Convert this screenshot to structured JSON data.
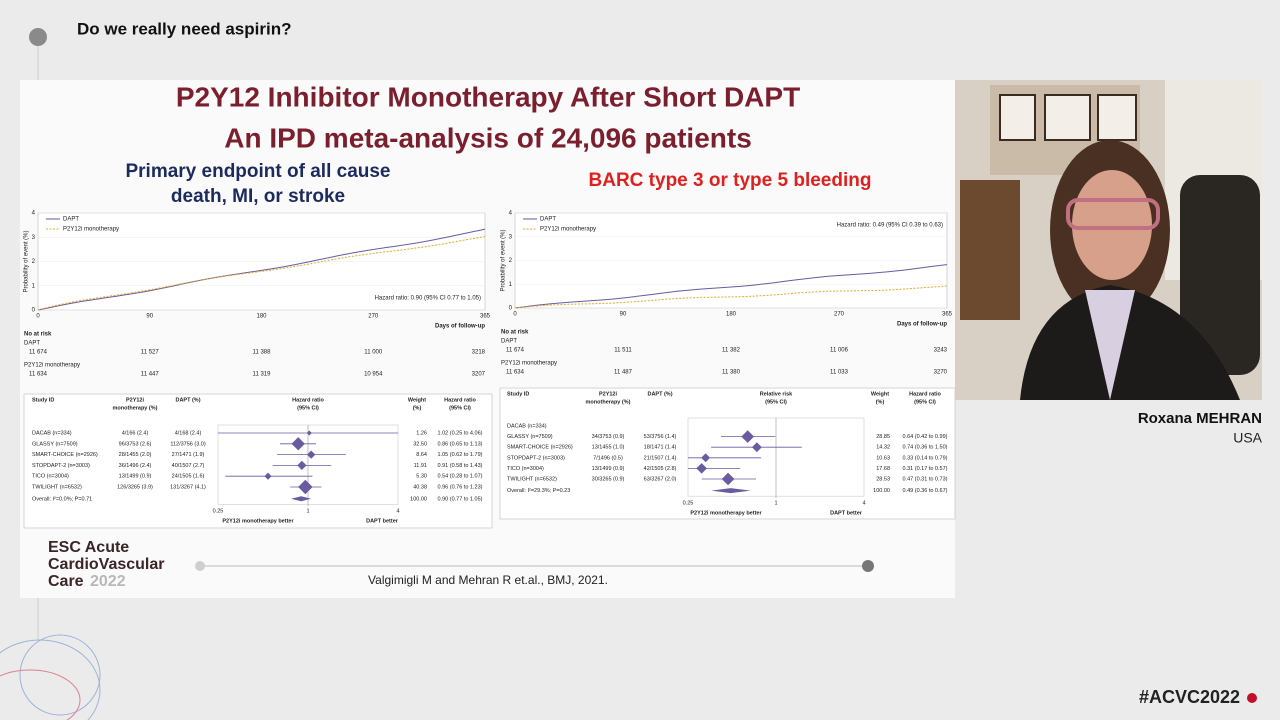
{
  "header": {
    "title": "Do we really need aspirin?"
  },
  "slide": {
    "title_lines": [
      "P2Y12 Inhibitor Monotherapy After Short DAPT",
      "An IPD meta-analysis of 24,096 patients"
    ],
    "left": {
      "heading_lines": [
        "Primary endpoint of all cause",
        "death, MI, or stroke"
      ],
      "legend": [
        "DAPT",
        "P2Y12i monotherapy"
      ],
      "y_label": "Probability of event (%)",
      "yticks": [
        "0",
        "1",
        "2",
        "3",
        "4"
      ],
      "xticks": [
        "0",
        "90",
        "180",
        "270",
        "365"
      ],
      "x_label": "Days of follow-up",
      "hazard": "Hazard ratio: 0.90 (95% CI 0.77 to 1.05)",
      "at_risk": {
        "title": "No at risk",
        "groups": [
          {
            "name": "DAPT",
            "counts": [
              "11 674",
              "11 527",
              "11 388",
              "11 000",
              "3218"
            ]
          },
          {
            "name": "P2Y12i monotherapy",
            "counts": [
              "11 634",
              "11 447",
              "11 319",
              "10 954",
              "3207"
            ]
          }
        ]
      },
      "forest": {
        "columns": [
          [
            "Study ID"
          ],
          [
            "P2Y12i",
            "monotherapy (%)"
          ],
          [
            "DAPT (%)"
          ],
          [
            "Hazard ratio",
            "(95% CI)"
          ],
          [
            "Weight",
            "(%)"
          ],
          [
            "Hazard ratio",
            "(95% CI)"
          ]
        ],
        "rows": [
          {
            "study": "DACAB (n=334)",
            "p2y12i": "4/166 (2.4)",
            "dapt": "4/168 (2.4)",
            "weight": "1.26",
            "hr": "1.02 (0.25 to 4.06)"
          },
          {
            "study": "GLASSY (n=7509)",
            "p2y12i": "96/3753 (2.6)",
            "dapt": "112/3756 (3.0)",
            "weight": "32.50",
            "hr": "0.86 (0.65 to 1.13)"
          },
          {
            "study": "SMART-CHOICE (n=2926)",
            "p2y12i": "28/1455 (2.0)",
            "dapt": "27/1471 (1.9)",
            "weight": "8.64",
            "hr": "1.05 (0.62 to 1.79)"
          },
          {
            "study": "STOPDAPT-2 (n=3003)",
            "p2y12i": "36/1496 (2.4)",
            "dapt": "40/1507 (2.7)",
            "weight": "11.91",
            "hr": "0.91 (0.58 to 1.43)"
          },
          {
            "study": "TICO (n=3004)",
            "p2y12i": "13/1499 (0.9)",
            "dapt": "24/1505 (1.6)",
            "weight": "5.30",
            "hr": "0.54 (0.28 to 1.07)"
          },
          {
            "study": "TWILIGHT (n=6532)",
            "p2y12i": "126/3265 (3.9)",
            "dapt": "131/3267 (4.1)",
            "weight": "40.38",
            "hr": "0.96 (0.76 to 1.23)"
          }
        ],
        "overall": {
          "study": "Overall: I²=0.0%; P=0.71",
          "weight": "100.00",
          "hr": "0.90 (0.77 to 1.05)"
        },
        "axis": [
          "0.25",
          "1",
          "4"
        ],
        "favors": [
          "P2Y12i  monotherapy better",
          "DAPT better"
        ]
      }
    },
    "right": {
      "heading_lines": [
        "BARC type 3 or type 5 bleeding"
      ],
      "legend": [
        "DAPT",
        "P2Y12i monotherapy"
      ],
      "y_label": "Probability of event (%)",
      "yticks": [
        "0",
        "1",
        "2",
        "3",
        "4"
      ],
      "xticks": [
        "0",
        "90",
        "180",
        "270",
        "365"
      ],
      "x_label": "Days of follow-up",
      "hazard": "Hazard ratio: 0.49 (95% CI 0.39 to 0.63)",
      "at_risk": {
        "title": "No at risk",
        "groups": [
          {
            "name": "DAPT",
            "counts": [
              "11 674",
              "11 511",
              "11 382",
              "11 006",
              "3243"
            ]
          },
          {
            "name": "P2Y12i monotherapy",
            "counts": [
              "11 634",
              "11 487",
              "11 380",
              "11 033",
              "3270"
            ]
          }
        ]
      },
      "forest": {
        "columns": [
          [
            "Study ID"
          ],
          [
            "P2Y12i",
            "monotherapy (%)"
          ],
          [
            "DAPT (%)"
          ],
          [
            "Relative risk",
            "(95% CI)"
          ],
          [
            "Weight",
            "(%)"
          ],
          [
            "Hazard ratio",
            "(95% CI)"
          ]
        ],
        "rows": [
          {
            "study": "DACAB (n=334)"
          },
          {
            "study": "GLASSY (n=7509)",
            "p2y12i": "34/3753 (0.9)",
            "dapt": "53/3756 (1.4)",
            "weight": "28.85",
            "hr": "0.64 (0.42 to 0.99)"
          },
          {
            "study": "SMART-CHOICE (n=2926)",
            "p2y12i": "13/1455 (1.0)",
            "dapt": "18/1471 (1.4)",
            "weight": "14.32",
            "hr": "0.74 (0.36 to 1.50)"
          },
          {
            "study": "STOPDAPT-2 (n=3003)",
            "p2y12i": "7/1496 (0.5)",
            "dapt": "21/1507 (1.4)",
            "weight": "10.63",
            "hr": "0.33 (0.14 to 0.79)"
          },
          {
            "study": "TICO (n=3004)",
            "p2y12i": "13/1499 (0.9)",
            "dapt": "42/1505 (2.8)",
            "weight": "17.68",
            "hr": "0.31 (0.17 to 0.57)"
          },
          {
            "study": "TWILIGHT (n=6532)",
            "p2y12i": "30/3265 (0.9)",
            "dapt": "63/3267 (2.0)",
            "weight": "28.53",
            "hr": "0.47 (0.31 to 0.73)"
          }
        ],
        "overall": {
          "study": "Overall: I²=29.3%; P=0.23",
          "weight": "100.00",
          "hr": "0.49 (0.36 to 0.67)"
        },
        "axis": [
          "0.25",
          "1",
          "4"
        ],
        "favors": [
          "P2Y12i  monotherapy better",
          "DAPT better"
        ]
      }
    },
    "logo_lines": [
      "ESC Acute",
      "CardioVascular",
      "Care",
      "2022"
    ],
    "citation": "Valgimigli M and Mehran R et.al., BMJ, 2021."
  },
  "speaker": {
    "name": "Roxana MEHRAN",
    "country": "USA"
  },
  "hashtag": "#ACVC2022"
}
